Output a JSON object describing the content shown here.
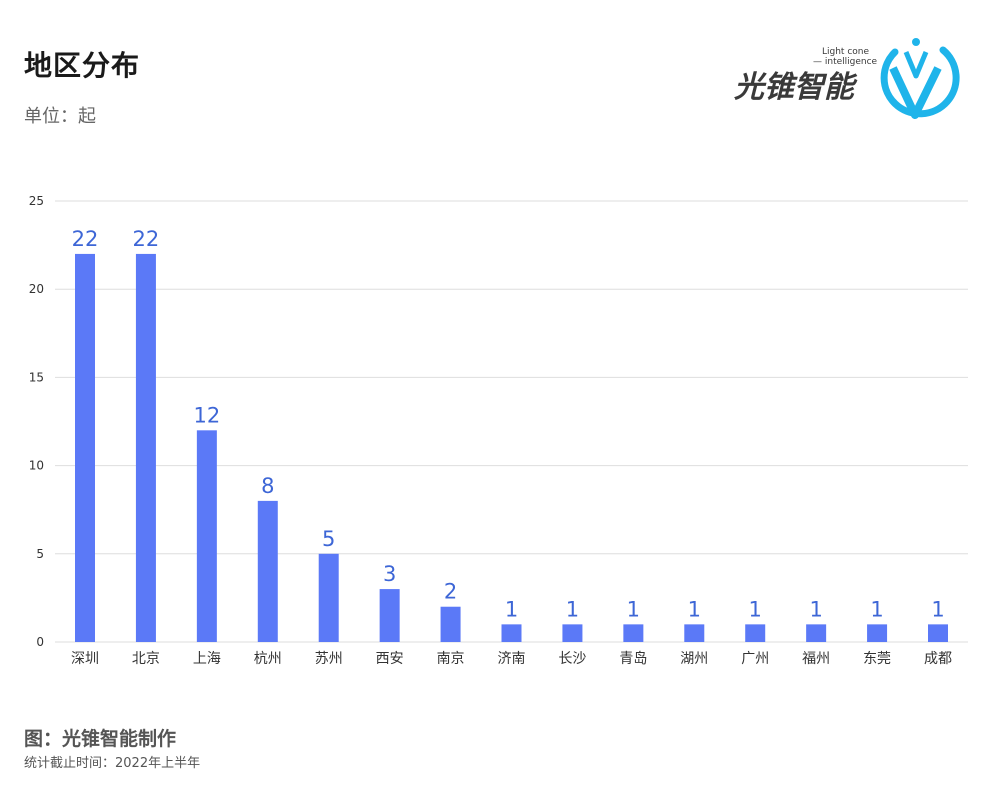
{
  "header": {
    "title": "地区分布",
    "unit": "单位：起"
  },
  "logo": {
    "cn_text": "光锥智能",
    "en_line1": "Light cone",
    "en_line2": "— intelligence",
    "colors": {
      "text": "#3a3a3a",
      "mark": "#1fb4ea"
    }
  },
  "footer": {
    "credit": "图：光锥智能制作",
    "note": "统计截止时间：2022年上半年"
  },
  "colors": {
    "bar": "#5b79f7",
    "label": "#3d66d6",
    "grid": "#dedede"
  },
  "chart_data": {
    "type": "bar",
    "title": "地区分布",
    "subtitle": "单位：起",
    "xlabel": "",
    "ylabel": "",
    "categories": [
      "深圳",
      "北京",
      "上海",
      "杭州",
      "苏州",
      "西安",
      "南京",
      "济南",
      "长沙",
      "青岛",
      "湖州",
      "广州",
      "福州",
      "东莞",
      "成都"
    ],
    "values": [
      22,
      22,
      12,
      8,
      5,
      3,
      2,
      1,
      1,
      1,
      1,
      1,
      1,
      1,
      1
    ],
    "ylim": [
      0,
      25
    ],
    "yticks": [
      0,
      5,
      10,
      15,
      20,
      25
    ],
    "grid": true,
    "data_labels": true
  }
}
